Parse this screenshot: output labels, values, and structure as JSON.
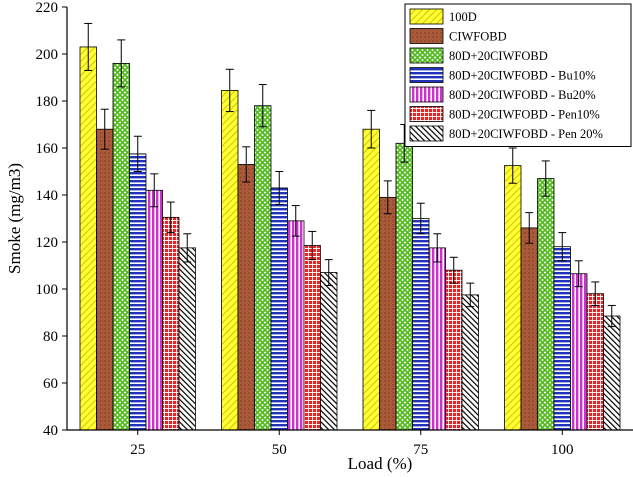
{
  "chart_data": {
    "type": "bar",
    "xlabel": "Load (%)",
    "ylabel": "Smoke (mg/m3)",
    "ylim": [
      40,
      220
    ],
    "yticks": [
      40,
      60,
      80,
      100,
      120,
      140,
      160,
      180,
      200,
      220
    ],
    "categories": [
      "25",
      "50",
      "75",
      "100"
    ],
    "grid": false,
    "legend_position": "top-right",
    "series": [
      {
        "name": "100D",
        "values": [
          203,
          184.5,
          168,
          152.5
        ],
        "errors": [
          10,
          9,
          8,
          7.5
        ],
        "color": "#ffff00",
        "pattern": "diagonal-hatch"
      },
      {
        "name": "CIWFOBD",
        "values": [
          168,
          153,
          139,
          126
        ],
        "errors": [
          8.5,
          7.5,
          7,
          6.5
        ],
        "color": "#a0522d",
        "pattern": "solid"
      },
      {
        "name": "80D+20CIWFOBD",
        "values": [
          196,
          178,
          162,
          147
        ],
        "errors": [
          10,
          9,
          8,
          7.5
        ],
        "color": "#66cc33",
        "pattern": "crosshatch"
      },
      {
        "name": "80D+20CIWFOBD - Bu10%",
        "values": [
          157.5,
          143,
          130,
          118
        ],
        "errors": [
          7.5,
          7,
          6.5,
          6
        ],
        "color": "#2233cc",
        "pattern": "horizontal-lines"
      },
      {
        "name": "80D+20CIWFOBD - Bu20%",
        "values": [
          142,
          129,
          117.5,
          106.5
        ],
        "errors": [
          7,
          6.5,
          6,
          5.5
        ],
        "color": "#cc33cc",
        "pattern": "vertical-lines"
      },
      {
        "name": "80D+20CIWFOBD - Pen10%",
        "values": [
          130.5,
          118.5,
          108,
          98
        ],
        "errors": [
          6.5,
          6,
          5.5,
          5
        ],
        "color": "#ee2222",
        "pattern": "grid"
      },
      {
        "name": "80D+20CIWFOBD - Pen 20%",
        "values": [
          117.5,
          107,
          97.5,
          88.5
        ],
        "errors": [
          6,
          5.5,
          5,
          4.5
        ],
        "color": "#000000",
        "pattern": "diagonal-hatch-dense"
      }
    ]
  }
}
